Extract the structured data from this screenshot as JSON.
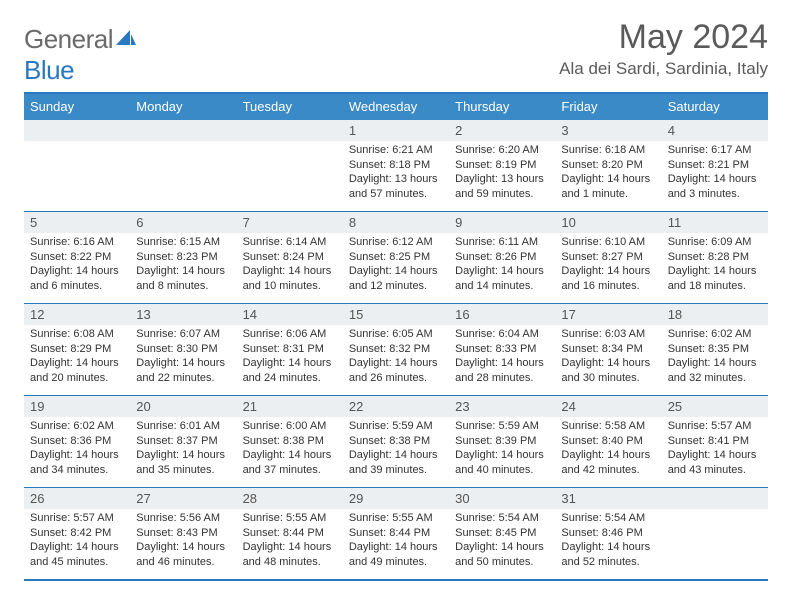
{
  "logo": {
    "word1": "General",
    "word2": "Blue"
  },
  "title": "May 2024",
  "location": "Ala dei Sardi, Sardinia, Italy",
  "colors": {
    "header_bar": "#3a8ac8",
    "border": "#2a78c0",
    "daynum_bg": "#eceff1",
    "text": "#333333",
    "title_text": "#5a5a5a",
    "logo_gray": "#6a6a6a"
  },
  "typography": {
    "title_size": 34,
    "location_size": 17,
    "dow_size": 13,
    "body_size": 11
  },
  "weekdays": [
    "Sunday",
    "Monday",
    "Tuesday",
    "Wednesday",
    "Thursday",
    "Friday",
    "Saturday"
  ],
  "weeks": [
    [
      {
        "num": "",
        "sunrise": "",
        "sunset": "",
        "daylight": ""
      },
      {
        "num": "",
        "sunrise": "",
        "sunset": "",
        "daylight": ""
      },
      {
        "num": "",
        "sunrise": "",
        "sunset": "",
        "daylight": ""
      },
      {
        "num": "1",
        "sunrise": "Sunrise: 6:21 AM",
        "sunset": "Sunset: 8:18 PM",
        "daylight": "Daylight: 13 hours and 57 minutes."
      },
      {
        "num": "2",
        "sunrise": "Sunrise: 6:20 AM",
        "sunset": "Sunset: 8:19 PM",
        "daylight": "Daylight: 13 hours and 59 minutes."
      },
      {
        "num": "3",
        "sunrise": "Sunrise: 6:18 AM",
        "sunset": "Sunset: 8:20 PM",
        "daylight": "Daylight: 14 hours and 1 minute."
      },
      {
        "num": "4",
        "sunrise": "Sunrise: 6:17 AM",
        "sunset": "Sunset: 8:21 PM",
        "daylight": "Daylight: 14 hours and 3 minutes."
      }
    ],
    [
      {
        "num": "5",
        "sunrise": "Sunrise: 6:16 AM",
        "sunset": "Sunset: 8:22 PM",
        "daylight": "Daylight: 14 hours and 6 minutes."
      },
      {
        "num": "6",
        "sunrise": "Sunrise: 6:15 AM",
        "sunset": "Sunset: 8:23 PM",
        "daylight": "Daylight: 14 hours and 8 minutes."
      },
      {
        "num": "7",
        "sunrise": "Sunrise: 6:14 AM",
        "sunset": "Sunset: 8:24 PM",
        "daylight": "Daylight: 14 hours and 10 minutes."
      },
      {
        "num": "8",
        "sunrise": "Sunrise: 6:12 AM",
        "sunset": "Sunset: 8:25 PM",
        "daylight": "Daylight: 14 hours and 12 minutes."
      },
      {
        "num": "9",
        "sunrise": "Sunrise: 6:11 AM",
        "sunset": "Sunset: 8:26 PM",
        "daylight": "Daylight: 14 hours and 14 minutes."
      },
      {
        "num": "10",
        "sunrise": "Sunrise: 6:10 AM",
        "sunset": "Sunset: 8:27 PM",
        "daylight": "Daylight: 14 hours and 16 minutes."
      },
      {
        "num": "11",
        "sunrise": "Sunrise: 6:09 AM",
        "sunset": "Sunset: 8:28 PM",
        "daylight": "Daylight: 14 hours and 18 minutes."
      }
    ],
    [
      {
        "num": "12",
        "sunrise": "Sunrise: 6:08 AM",
        "sunset": "Sunset: 8:29 PM",
        "daylight": "Daylight: 14 hours and 20 minutes."
      },
      {
        "num": "13",
        "sunrise": "Sunrise: 6:07 AM",
        "sunset": "Sunset: 8:30 PM",
        "daylight": "Daylight: 14 hours and 22 minutes."
      },
      {
        "num": "14",
        "sunrise": "Sunrise: 6:06 AM",
        "sunset": "Sunset: 8:31 PM",
        "daylight": "Daylight: 14 hours and 24 minutes."
      },
      {
        "num": "15",
        "sunrise": "Sunrise: 6:05 AM",
        "sunset": "Sunset: 8:32 PM",
        "daylight": "Daylight: 14 hours and 26 minutes."
      },
      {
        "num": "16",
        "sunrise": "Sunrise: 6:04 AM",
        "sunset": "Sunset: 8:33 PM",
        "daylight": "Daylight: 14 hours and 28 minutes."
      },
      {
        "num": "17",
        "sunrise": "Sunrise: 6:03 AM",
        "sunset": "Sunset: 8:34 PM",
        "daylight": "Daylight: 14 hours and 30 minutes."
      },
      {
        "num": "18",
        "sunrise": "Sunrise: 6:02 AM",
        "sunset": "Sunset: 8:35 PM",
        "daylight": "Daylight: 14 hours and 32 minutes."
      }
    ],
    [
      {
        "num": "19",
        "sunrise": "Sunrise: 6:02 AM",
        "sunset": "Sunset: 8:36 PM",
        "daylight": "Daylight: 14 hours and 34 minutes."
      },
      {
        "num": "20",
        "sunrise": "Sunrise: 6:01 AM",
        "sunset": "Sunset: 8:37 PM",
        "daylight": "Daylight: 14 hours and 35 minutes."
      },
      {
        "num": "21",
        "sunrise": "Sunrise: 6:00 AM",
        "sunset": "Sunset: 8:38 PM",
        "daylight": "Daylight: 14 hours and 37 minutes."
      },
      {
        "num": "22",
        "sunrise": "Sunrise: 5:59 AM",
        "sunset": "Sunset: 8:38 PM",
        "daylight": "Daylight: 14 hours and 39 minutes."
      },
      {
        "num": "23",
        "sunrise": "Sunrise: 5:59 AM",
        "sunset": "Sunset: 8:39 PM",
        "daylight": "Daylight: 14 hours and 40 minutes."
      },
      {
        "num": "24",
        "sunrise": "Sunrise: 5:58 AM",
        "sunset": "Sunset: 8:40 PM",
        "daylight": "Daylight: 14 hours and 42 minutes."
      },
      {
        "num": "25",
        "sunrise": "Sunrise: 5:57 AM",
        "sunset": "Sunset: 8:41 PM",
        "daylight": "Daylight: 14 hours and 43 minutes."
      }
    ],
    [
      {
        "num": "26",
        "sunrise": "Sunrise: 5:57 AM",
        "sunset": "Sunset: 8:42 PM",
        "daylight": "Daylight: 14 hours and 45 minutes."
      },
      {
        "num": "27",
        "sunrise": "Sunrise: 5:56 AM",
        "sunset": "Sunset: 8:43 PM",
        "daylight": "Daylight: 14 hours and 46 minutes."
      },
      {
        "num": "28",
        "sunrise": "Sunrise: 5:55 AM",
        "sunset": "Sunset: 8:44 PM",
        "daylight": "Daylight: 14 hours and 48 minutes."
      },
      {
        "num": "29",
        "sunrise": "Sunrise: 5:55 AM",
        "sunset": "Sunset: 8:44 PM",
        "daylight": "Daylight: 14 hours and 49 minutes."
      },
      {
        "num": "30",
        "sunrise": "Sunrise: 5:54 AM",
        "sunset": "Sunset: 8:45 PM",
        "daylight": "Daylight: 14 hours and 50 minutes."
      },
      {
        "num": "31",
        "sunrise": "Sunrise: 5:54 AM",
        "sunset": "Sunset: 8:46 PM",
        "daylight": "Daylight: 14 hours and 52 minutes."
      },
      {
        "num": "",
        "sunrise": "",
        "sunset": "",
        "daylight": ""
      }
    ]
  ]
}
